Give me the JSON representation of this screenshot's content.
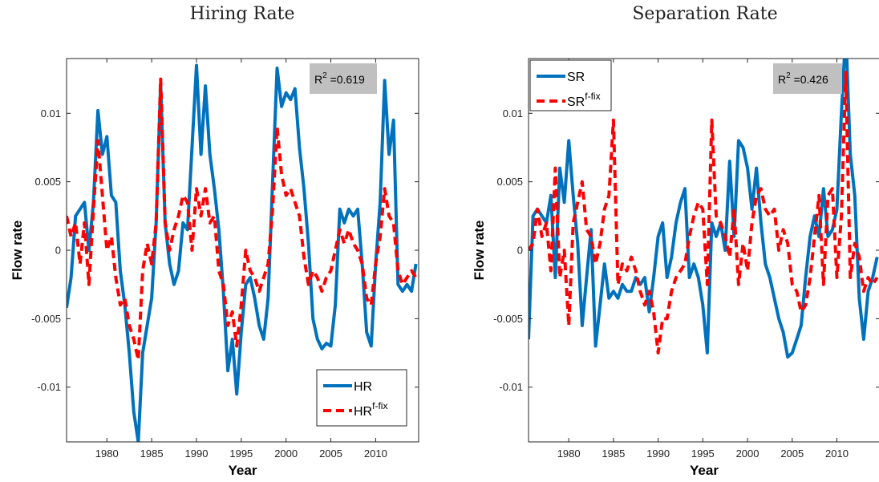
{
  "chart_data": [
    {
      "type": "line",
      "title": "Hiring Rate",
      "xlabel": "Year",
      "ylabel": "Flow rate",
      "xlim": [
        1975.5,
        2014.8
      ],
      "ylim": [
        -0.014,
        0.014
      ],
      "xticks": [
        1980,
        1985,
        1990,
        1995,
        2000,
        2005,
        2010
      ],
      "yticks": [
        -0.01,
        -0.005,
        0,
        0.005,
        0.01
      ],
      "ytick_labels": [
        "-0.01",
        "-0.005",
        "0",
        "0.005",
        "0.01"
      ],
      "grid": false,
      "legend_position": "bottom-right",
      "annotation": {
        "base": "R",
        "sup": "2",
        "text": " =0.619"
      },
      "series": [
        {
          "name": "HR",
          "sup": "",
          "color": "#0072BD",
          "style": "solid",
          "x": [
            1975.5,
            1976,
            1976.5,
            1977,
            1977.5,
            1978,
            1978.5,
            1979,
            1979.5,
            1980,
            1980.5,
            1981,
            1981.5,
            1982,
            1982.5,
            1983,
            1983.5,
            1984,
            1984.5,
            1985,
            1985.5,
            1986,
            1986.5,
            1987,
            1987.5,
            1988,
            1988.5,
            1989,
            1989.5,
            1990,
            1990.5,
            1991,
            1991.5,
            1992,
            1992.5,
            1993,
            1993.5,
            1994,
            1994.5,
            1995,
            1995.5,
            1996,
            1996.5,
            1997,
            1997.5,
            1998,
            1998.5,
            1999,
            1999.5,
            2000,
            2000.5,
            2001,
            2001.5,
            2002,
            2002.5,
            2003,
            2003.5,
            2004,
            2004.5,
            2005,
            2005.5,
            2006,
            2006.5,
            2007,
            2007.5,
            2008,
            2008.5,
            2009,
            2009.5,
            2010,
            2010.5,
            2011,
            2011.5,
            2012,
            2012.5,
            2013,
            2013.5,
            2014,
            2014.5
          ],
          "y": [
            -0.0042,
            -0.002,
            0.0025,
            0.003,
            0.0035,
            0.0,
            0.0035,
            0.0102,
            0.007,
            0.0083,
            0.004,
            0.0035,
            -0.0015,
            -0.004,
            -0.0075,
            -0.0118,
            -0.014,
            -0.0075,
            -0.0055,
            -0.0035,
            0.002,
            0.0122,
            0.002,
            -0.001,
            -0.0025,
            -0.0015,
            0.002,
            0.0015,
            0.0075,
            0.0135,
            0.007,
            0.012,
            0.007,
            0.0045,
            0.0015,
            -0.003,
            -0.0088,
            -0.0065,
            -0.0105,
            -0.006,
            -0.0025,
            -0.002,
            -0.0035,
            -0.0055,
            -0.0065,
            -0.0035,
            0.005,
            0.0133,
            0.0105,
            0.0115,
            0.011,
            0.0118,
            0.0075,
            0.0045,
            0.0005,
            -0.005,
            -0.0065,
            -0.0072,
            -0.0068,
            -0.007,
            -0.004,
            0.003,
            0.002,
            0.003,
            0.0025,
            0.003,
            -0.001,
            -0.006,
            -0.007,
            -0.001,
            0.0035,
            0.0124,
            0.007,
            0.0095,
            -0.0025,
            -0.003,
            -0.0025,
            -0.003,
            -0.001
          ]
        },
        {
          "name": "HR",
          "sup": "f-fix",
          "color": "#FF0000",
          "style": "dashed",
          "x": [
            1975.5,
            1976,
            1976.5,
            1977,
            1977.5,
            1978,
            1978.5,
            1979,
            1979.5,
            1980,
            1980.5,
            1981,
            1981.5,
            1982,
            1982.5,
            1983,
            1983.5,
            1984,
            1984.5,
            1985,
            1985.5,
            1986,
            1986.5,
            1987,
            1987.5,
            1988,
            1988.5,
            1989,
            1989.5,
            1990,
            1990.5,
            1991,
            1991.5,
            1992,
            1992.5,
            1993,
            1993.5,
            1994,
            1994.5,
            1995,
            1995.5,
            1996,
            1996.5,
            1997,
            1997.5,
            1998,
            1998.5,
            1999,
            1999.5,
            2000,
            2000.5,
            2001,
            2001.5,
            2002,
            2002.5,
            2003,
            2003.5,
            2004,
            2004.5,
            2005,
            2005.5,
            2006,
            2006.5,
            2007,
            2007.5,
            2008,
            2008.5,
            2009,
            2009.5,
            2010,
            2010.5,
            2011,
            2011.5,
            2012,
            2012.5,
            2013,
            2013.5,
            2014,
            2014.5
          ],
          "y": [
            0.0025,
            0.001,
            0.002,
            -0.001,
            0.002,
            -0.0025,
            0.003,
            0.008,
            0.004,
            0.0,
            0.001,
            -0.002,
            -0.004,
            -0.0035,
            -0.0055,
            -0.0065,
            -0.008,
            -0.0015,
            0.0005,
            -0.001,
            0.002,
            0.0125,
            0.002,
            0.0,
            0.0015,
            0.0025,
            0.004,
            0.0035,
            0.0,
            0.0045,
            0.0025,
            0.0045,
            0.002,
            0.0025,
            -0.0015,
            -0.0025,
            -0.0055,
            -0.0045,
            -0.007,
            -0.004,
            0.0,
            -0.0015,
            -0.002,
            -0.003,
            -0.002,
            -0.001,
            0.003,
            0.009,
            0.0055,
            0.004,
            0.0045,
            0.0035,
            0.0025,
            -0.0005,
            -0.0025,
            -0.0015,
            -0.002,
            -0.003,
            -0.002,
            -0.0015,
            0.0,
            0.0015,
            0.0005,
            0.0015,
            0.0005,
            0.0,
            -0.001,
            -0.0035,
            -0.004,
            -0.001,
            0.001,
            0.0045,
            0.0025,
            0.002,
            -0.0015,
            -0.0025,
            -0.002,
            -0.0015,
            -0.002
          ]
        }
      ]
    },
    {
      "type": "line",
      "title": "Separation Rate",
      "xlabel": "Year",
      "ylabel": "Flow rate",
      "xlim": [
        1975.5,
        2014.8
      ],
      "ylim": [
        -0.014,
        0.014
      ],
      "xticks": [
        1980,
        1985,
        1990,
        1995,
        2000,
        2005,
        2010
      ],
      "yticks": [
        -0.01,
        -0.005,
        0,
        0.005,
        0.01
      ],
      "ytick_labels": [
        "-0.01",
        "-0.005",
        "0",
        "0.005",
        "0.01"
      ],
      "grid": false,
      "legend_position": "top-left",
      "annotation": {
        "base": "R",
        "sup": "2",
        "text": " =0.426"
      },
      "series": [
        {
          "name": "SR",
          "sup": "",
          "color": "#0072BD",
          "style": "solid",
          "x": [
            1975.5,
            1976,
            1976.5,
            1977,
            1977.5,
            1978,
            1978.5,
            1979,
            1979.5,
            1980,
            1980.5,
            1981,
            1981.5,
            1982,
            1982.5,
            1983,
            1983.5,
            1984,
            1984.5,
            1985,
            1985.5,
            1986,
            1986.5,
            1987,
            1987.5,
            1988,
            1988.5,
            1989,
            1989.5,
            1990,
            1990.5,
            1991,
            1991.5,
            1992,
            1992.5,
            1993,
            1993.5,
            1994,
            1994.5,
            1995,
            1995.5,
            1996,
            1996.5,
            1997,
            1997.5,
            1998,
            1998.5,
            1999,
            1999.5,
            2000,
            2000.5,
            2001,
            2001.5,
            2002,
            2002.5,
            2003,
            2003.5,
            2004,
            2004.5,
            2005,
            2005.5,
            2006,
            2006.5,
            2007,
            2007.5,
            2008,
            2008.5,
            2009,
            2009.5,
            2010,
            2010.5,
            2011,
            2011.5,
            2012,
            2012.5,
            2013,
            2013.5,
            2014,
            2014.5
          ],
          "y": [
            -0.0065,
            0.0025,
            0.003,
            0.0025,
            0.002,
            0.004,
            -0.002,
            0.006,
            0.0035,
            0.008,
            0.004,
            0.0005,
            -0.0055,
            -0.002,
            0.0015,
            -0.007,
            -0.004,
            -0.001,
            -0.0035,
            -0.003,
            -0.0035,
            -0.0025,
            -0.003,
            -0.003,
            -0.002,
            -0.0025,
            -0.002,
            -0.0045,
            -0.002,
            0.001,
            0.002,
            -0.002,
            -0.0005,
            0.002,
            0.0035,
            0.0045,
            -0.002,
            -0.001,
            -0.002,
            -0.004,
            -0.0075,
            0.002,
            0.001,
            0.002,
            0.0,
            0.0065,
            0.001,
            0.008,
            0.0075,
            0.006,
            0.003,
            0.006,
            0.002,
            -0.001,
            -0.002,
            -0.0035,
            -0.005,
            -0.006,
            -0.0078,
            -0.0075,
            -0.0065,
            -0.0055,
            -0.002,
            0.001,
            0.0025,
            0.001,
            0.0045,
            0.001,
            0.0015,
            0.003,
            0.01,
            0.016,
            0.007,
            0.004,
            -0.0035,
            -0.0065,
            -0.003,
            -0.002,
            -0.0005
          ]
        },
        {
          "name": "SR",
          "sup": "f-fix",
          "color": "#FF0000",
          "style": "dashed",
          "x": [
            1975.5,
            1976,
            1976.5,
            1977,
            1977.5,
            1978,
            1978.5,
            1979,
            1979.5,
            1980,
            1980.5,
            1981,
            1981.5,
            1982,
            1982.5,
            1983,
            1983.5,
            1984,
            1984.5,
            1985,
            1985.5,
            1986,
            1986.5,
            1987,
            1987.5,
            1988,
            1988.5,
            1989,
            1989.5,
            1990,
            1990.5,
            1991,
            1991.5,
            1992,
            1992.5,
            1993,
            1993.5,
            1994,
            1994.5,
            1995,
            1995.5,
            1996,
            1996.5,
            1997,
            1997.5,
            1998,
            1998.5,
            1999,
            1999.5,
            2000,
            2000.5,
            2001,
            2001.5,
            2002,
            2002.5,
            2003,
            2003.5,
            2004,
            2004.5,
            2005,
            2005.5,
            2006,
            2006.5,
            2007,
            2007.5,
            2008,
            2008.5,
            2009,
            2009.5,
            2010,
            2010.5,
            2011,
            2011.5,
            2012,
            2012.5,
            2013,
            2013.5,
            2014,
            2014.5
          ],
          "y": [
            0.0,
            0.0005,
            0.003,
            0.001,
            0.002,
            -0.0015,
            0.006,
            -0.002,
            0.0,
            -0.0055,
            0.002,
            0.0035,
            0.005,
            0.0015,
            0.001,
            -0.001,
            0.0005,
            0.003,
            0.004,
            0.0095,
            -0.0025,
            -0.001,
            -0.0015,
            -0.0005,
            -0.0015,
            -0.003,
            -0.004,
            -0.003,
            -0.0045,
            -0.0075,
            -0.005,
            -0.005,
            -0.003,
            -0.002,
            -0.0015,
            -0.001,
            0.001,
            0.0025,
            0.0035,
            0.003,
            -0.0025,
            0.0095,
            0.0025,
            0.002,
            0.001,
            -0.0005,
            0.003,
            -0.0025,
            0.0005,
            -0.0015,
            0.002,
            0.004,
            0.0045,
            0.003,
            0.0025,
            0.003,
            0.0,
            0.0015,
            0.0005,
            -0.0025,
            -0.003,
            -0.0045,
            -0.004,
            -0.002,
            0.001,
            0.004,
            -0.0025,
            0.004,
            0.0045,
            -0.002,
            0.0025,
            0.013,
            -0.002,
            0.0005,
            -0.0005,
            -0.003,
            -0.002,
            -0.0025,
            -0.002
          ]
        }
      ]
    }
  ]
}
